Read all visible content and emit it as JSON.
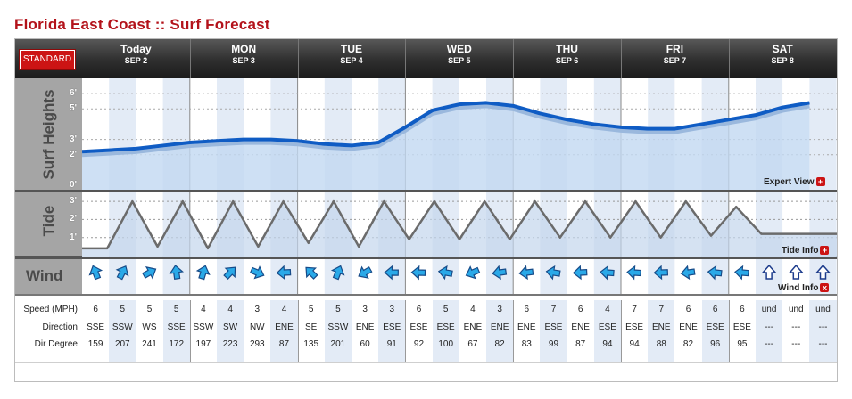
{
  "title": "Florida East Coast :: Surf Forecast",
  "standard_button": "STANDARD",
  "days": [
    {
      "name": "Today",
      "date": "SEP 2"
    },
    {
      "name": "MON",
      "date": "SEP 3"
    },
    {
      "name": "TUE",
      "date": "SEP 4"
    },
    {
      "name": "WED",
      "date": "SEP 5"
    },
    {
      "name": "THU",
      "date": "SEP 6"
    },
    {
      "name": "FRI",
      "date": "SEP 7"
    },
    {
      "name": "SAT",
      "date": "SEP 8"
    }
  ],
  "labels": {
    "surf": "Surf Heights",
    "tide": "Tide",
    "wind": "Wind"
  },
  "surf_ticks": [
    "6'",
    "5'",
    "3'",
    "2'",
    "0'"
  ],
  "tide_ticks": [
    "3'",
    "2'",
    "1'"
  ],
  "links": {
    "expert": "Expert View",
    "tide_info": "Tide Info",
    "wind_info": "Wind Info"
  },
  "colors": {
    "accent": "#b3121a",
    "surf_line": "#0f5cc4",
    "surf_fill": "#c2d8f1",
    "tide_line": "#6b6b6b",
    "tide_fill": "#c3d5ec",
    "arrow": "#2aa9e8"
  },
  "chart_data": {
    "surf": {
      "type": "area",
      "ylim": [
        0,
        7
      ],
      "values": [
        2.2,
        2.3,
        2.4,
        2.6,
        2.8,
        2.9,
        3.0,
        3.0,
        2.9,
        2.7,
        2.6,
        2.8,
        3.8,
        4.9,
        5.3,
        5.4,
        5.2,
        4.7,
        4.3,
        4.0,
        3.8,
        3.7,
        3.7,
        4.0,
        4.3,
        4.6,
        5.1,
        5.4
      ]
    },
    "tide": {
      "type": "line",
      "ylim": [
        0,
        3.4
      ],
      "values": [
        0.4,
        0.4,
        3,
        0.5,
        3,
        0.4,
        3,
        0.5,
        3,
        0.7,
        3,
        0.5,
        3,
        0.9,
        3,
        0.9,
        3,
        0.9,
        3,
        1,
        3,
        1,
        3,
        1,
        3,
        1.1,
        2.7,
        1.2,
        1.2,
        1.2,
        1.2
      ]
    },
    "type": "area"
  },
  "wind": {
    "rows": {
      "speed": "Speed (MPH)",
      "direction": "Direction",
      "degree": "Dir Degree"
    },
    "entries": [
      {
        "speed": "6",
        "dir": "SSE",
        "deg": "159"
      },
      {
        "speed": "5",
        "dir": "SSW",
        "deg": "207"
      },
      {
        "speed": "5",
        "dir": "WS",
        "deg": "241"
      },
      {
        "speed": "5",
        "dir": "SSE",
        "deg": "172"
      },
      {
        "speed": "4",
        "dir": "SSW",
        "deg": "197"
      },
      {
        "speed": "4",
        "dir": "SW",
        "deg": "223"
      },
      {
        "speed": "3",
        "dir": "NW",
        "deg": "293"
      },
      {
        "speed": "4",
        "dir": "ENE",
        "deg": "87"
      },
      {
        "speed": "5",
        "dir": "SE",
        "deg": "135"
      },
      {
        "speed": "5",
        "dir": "SSW",
        "deg": "201"
      },
      {
        "speed": "3",
        "dir": "ENE",
        "deg": "60"
      },
      {
        "speed": "3",
        "dir": "ESE",
        "deg": "91"
      },
      {
        "speed": "6",
        "dir": "ESE",
        "deg": "92"
      },
      {
        "speed": "5",
        "dir": "ESE",
        "deg": "100"
      },
      {
        "speed": "4",
        "dir": "ENE",
        "deg": "67"
      },
      {
        "speed": "3",
        "dir": "ENE",
        "deg": "82"
      },
      {
        "speed": "6",
        "dir": "ENE",
        "deg": "83"
      },
      {
        "speed": "7",
        "dir": "ESE",
        "deg": "99"
      },
      {
        "speed": "6",
        "dir": "ENE",
        "deg": "87"
      },
      {
        "speed": "4",
        "dir": "ESE",
        "deg": "94"
      },
      {
        "speed": "7",
        "dir": "ESE",
        "deg": "94"
      },
      {
        "speed": "7",
        "dir": "ENE",
        "deg": "88"
      },
      {
        "speed": "6",
        "dir": "ENE",
        "deg": "82"
      },
      {
        "speed": "6",
        "dir": "ESE",
        "deg": "96"
      },
      {
        "speed": "6",
        "dir": "ESE",
        "deg": "95"
      },
      {
        "speed": "und",
        "dir": "---",
        "deg": "---"
      },
      {
        "speed": "und",
        "dir": "---",
        "deg": "---"
      },
      {
        "speed": "und",
        "dir": "---",
        "deg": "---"
      }
    ]
  }
}
